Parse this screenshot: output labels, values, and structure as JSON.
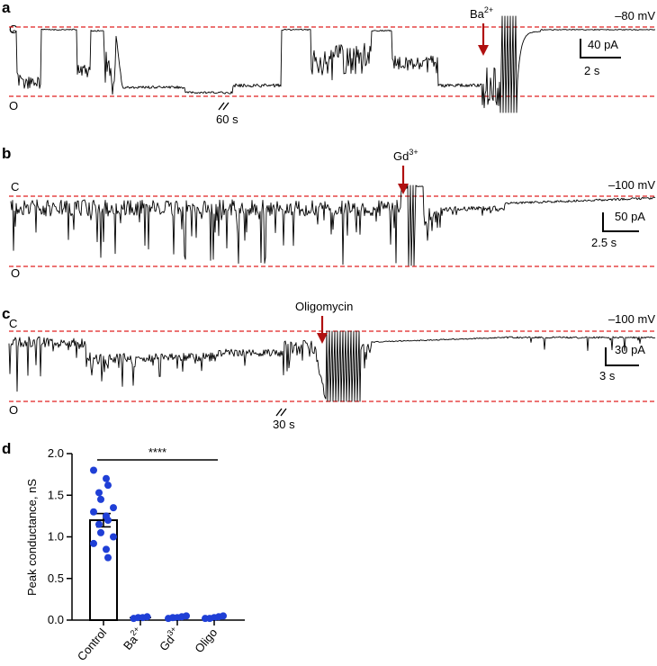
{
  "panels": [
    {
      "id": "a",
      "label": "a",
      "voltage": "–80 mV",
      "closed_label": "C",
      "open_label": "O",
      "drug_main": "Ba",
      "drug_sup": "2+",
      "break_label": "60 s",
      "scale_current": "40 pA",
      "scale_time": "2 s"
    },
    {
      "id": "b",
      "label": "b",
      "voltage": "–100 mV",
      "closed_label": "C",
      "open_label": "O",
      "drug_main": "Gd",
      "drug_sup": "3+",
      "scale_current": "50 pA",
      "scale_time": "2.5 s"
    },
    {
      "id": "c",
      "label": "c",
      "voltage": "–100 mV",
      "closed_label": "C",
      "open_label": "O",
      "drug_main": "Oligomycin",
      "break_label": "30 s",
      "scale_current": "30 pA",
      "scale_time": "3 s"
    }
  ],
  "chart_data": {
    "label": "d",
    "type": "bar",
    "ylabel": "Peak conductance, nS",
    "ylim": [
      0,
      2.0
    ],
    "yticks": [
      "0.0",
      "0.5",
      "1.0",
      "1.5",
      "2.0"
    ],
    "significance": "****",
    "categories": [
      {
        "main": "Control",
        "sup": ""
      },
      {
        "main": "Ba",
        "sup": "2+"
      },
      {
        "main": "Gd",
        "sup": "3+"
      },
      {
        "main": "Oligo",
        "sup": ""
      }
    ],
    "values": [
      1.2,
      0.03,
      0.03,
      0.03
    ],
    "errors": [
      0.08,
      0.005,
      0.005,
      0.005
    ],
    "points": [
      [
        1.8,
        1.7,
        1.62,
        1.53,
        1.45,
        1.35,
        1.3,
        1.25,
        1.2,
        1.15,
        1.05,
        1.0,
        0.92,
        0.85,
        0.75
      ],
      [
        0.02,
        0.03,
        0.03,
        0.04
      ],
      [
        0.02,
        0.03,
        0.03,
        0.04,
        0.05
      ],
      [
        0.02,
        0.02,
        0.03,
        0.04,
        0.05
      ]
    ],
    "colors": {
      "points": "#1f3fd6",
      "threshold": "#e02020",
      "arrow": "#b01010"
    }
  }
}
